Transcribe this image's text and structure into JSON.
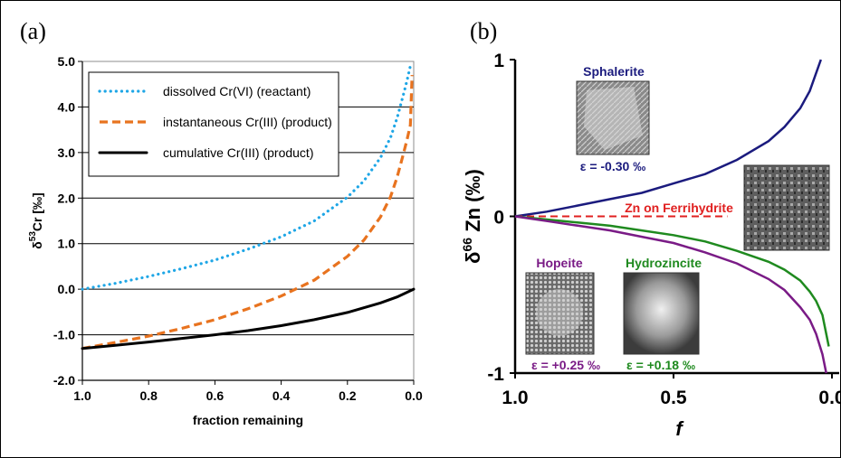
{
  "chart_data": [
    {
      "type": "line",
      "panel": "(a)",
      "xlabel": "fraction remaining",
      "ylabel": "δ53Cr [‰]",
      "ylabel_main": "δ",
      "ylabel_sup": "53",
      "ylabel_rest": "Cr [‰]",
      "xlim": [
        1.0,
        0.0
      ],
      "ylim": [
        -2.0,
        5.0
      ],
      "xticks": [
        "1.0",
        "0.8",
        "0.6",
        "0.4",
        "0.2",
        "0.0"
      ],
      "yticks": [
        "5.0",
        "4.0",
        "3.0",
        "2.0",
        "1.0",
        "0.0",
        "-1.0",
        "-2.0"
      ],
      "grid": "horizontal",
      "legend_position": "top-left",
      "series": [
        {
          "name": "dissolved Cr(VI) (reactant)",
          "color": "#1ea6e6",
          "style": "dotted",
          "x": [
            1.0,
            0.9,
            0.8,
            0.7,
            0.6,
            0.5,
            0.4,
            0.3,
            0.2,
            0.15,
            0.1,
            0.07,
            0.05,
            0.03,
            0.02,
            0.01
          ],
          "y": [
            0.0,
            0.13,
            0.28,
            0.45,
            0.64,
            0.88,
            1.15,
            1.5,
            2.02,
            2.38,
            2.89,
            3.33,
            3.76,
            4.3,
            4.59,
            4.9
          ]
        },
        {
          "name": "instantaneous Cr(III) (product)",
          "color": "#e8731f",
          "style": "dashed",
          "x": [
            1.0,
            0.9,
            0.8,
            0.7,
            0.6,
            0.5,
            0.4,
            0.3,
            0.2,
            0.15,
            0.1,
            0.07,
            0.05,
            0.03,
            0.02,
            0.01,
            0.005
          ],
          "y": [
            -1.3,
            -1.17,
            -1.03,
            -0.86,
            -0.67,
            -0.43,
            -0.15,
            0.2,
            0.72,
            1.08,
            1.59,
            2.03,
            2.46,
            3.0,
            3.29,
            3.6,
            4.7
          ]
        },
        {
          "name": "cumulative Cr(III) (product)",
          "color": "#000000",
          "style": "solid",
          "x": [
            1.0,
            0.9,
            0.8,
            0.7,
            0.6,
            0.5,
            0.4,
            0.3,
            0.2,
            0.1,
            0.05,
            0.0
          ],
          "y": [
            -1.3,
            -1.23,
            -1.16,
            -1.08,
            -1.0,
            -0.91,
            -0.8,
            -0.67,
            -0.51,
            -0.3,
            -0.17,
            0.0
          ]
        }
      ]
    },
    {
      "type": "line",
      "panel": "(b)",
      "xlabel": "f",
      "ylabel": "δ66 Zn (‰)",
      "ylabel_main": "δ",
      "ylabel_sup": "66",
      "ylabel_rest": " Zn (‰)",
      "xlim": [
        1.0,
        0.0
      ],
      "ylim": [
        -1,
        1
      ],
      "xticks": [
        "1.0",
        "0.5",
        "0.0"
      ],
      "yticks": [
        "1",
        "0",
        "-1"
      ],
      "grid": "none",
      "series": [
        {
          "name": "Sphalerite",
          "epsilon": "ε = -0.30 ‰",
          "color": "#1b1b7e",
          "style": "solid",
          "x": [
            1.0,
            0.9,
            0.8,
            0.7,
            0.6,
            0.5,
            0.4,
            0.3,
            0.2,
            0.15,
            0.1,
            0.07,
            0.035
          ],
          "y": [
            0.0,
            0.03,
            0.07,
            0.11,
            0.15,
            0.21,
            0.27,
            0.36,
            0.48,
            0.57,
            0.69,
            0.8,
            1.0
          ]
        },
        {
          "name": "Zn on Ferrihydrite",
          "color": "#e02020",
          "style": "dashed",
          "x": [
            1.0,
            0.33
          ],
          "y": [
            0.0,
            0.0
          ]
        },
        {
          "name": "Hydrozincite",
          "epsilon": "ε = +0.18 ‰",
          "color": "#1f8a1f",
          "style": "solid",
          "x": [
            1.0,
            0.9,
            0.8,
            0.7,
            0.6,
            0.5,
            0.4,
            0.3,
            0.2,
            0.15,
            0.1,
            0.07,
            0.05,
            0.03,
            0.01
          ],
          "y": [
            0.0,
            -0.02,
            -0.04,
            -0.06,
            -0.09,
            -0.12,
            -0.16,
            -0.22,
            -0.29,
            -0.34,
            -0.41,
            -0.48,
            -0.54,
            -0.63,
            -0.83
          ]
        },
        {
          "name": "Hopeite",
          "epsilon": "ε = +0.25 ‰",
          "color": "#7a1b86",
          "style": "solid",
          "x": [
            1.0,
            0.9,
            0.8,
            0.7,
            0.6,
            0.5,
            0.4,
            0.3,
            0.2,
            0.15,
            0.1,
            0.07,
            0.05,
            0.03,
            0.018
          ],
          "y": [
            0.0,
            -0.03,
            -0.06,
            -0.09,
            -0.13,
            -0.17,
            -0.23,
            -0.3,
            -0.4,
            -0.47,
            -0.58,
            -0.66,
            -0.75,
            -0.88,
            -1.0
          ]
        }
      ]
    }
  ]
}
